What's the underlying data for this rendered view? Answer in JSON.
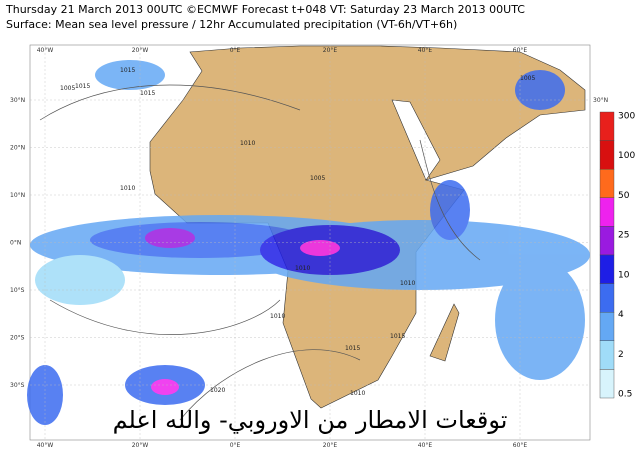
{
  "header": {
    "line1": "Thursday 21 March 2013 00UTC ©ECMWF Forecast t+048 VT: Saturday 23 March 2013 00UTC",
    "line2": "Surface: Mean sea level pressure / 12hr Accumulated precipitation (VT-6h/VT+6h)"
  },
  "map": {
    "lon_labels": [
      "40°W",
      "20°W",
      "0°E",
      "20°E",
      "40°E",
      "60°E"
    ],
    "lat_labels": [
      "30°N",
      "20°N",
      "10°N",
      "0°N",
      "10°S",
      "20°S",
      "30°S"
    ],
    "right_lat_label": "30°N",
    "isobar_labels": [
      "1015",
      "1010",
      "1015",
      "1005",
      "1010",
      "1005",
      "1005",
      "1010",
      "1010",
      "1010",
      "1015",
      "1015",
      "1010",
      "1020",
      "1015"
    ]
  },
  "colorbar": {
    "labels": [
      "300",
      "100",
      "50",
      "25",
      "10",
      "4",
      "2",
      "0.5"
    ],
    "colors": [
      "#e8201c",
      "#d81010",
      "#ff6a1c",
      "#ee22ee",
      "#9a1ae0",
      "#1e1ee6",
      "#3c6cf0",
      "#64a8f4",
      "#a0dcf8",
      "#d8f4fc"
    ]
  },
  "overlay": {
    "text": "توقعات الامطار من الاوروبي- والله اعلم"
  }
}
